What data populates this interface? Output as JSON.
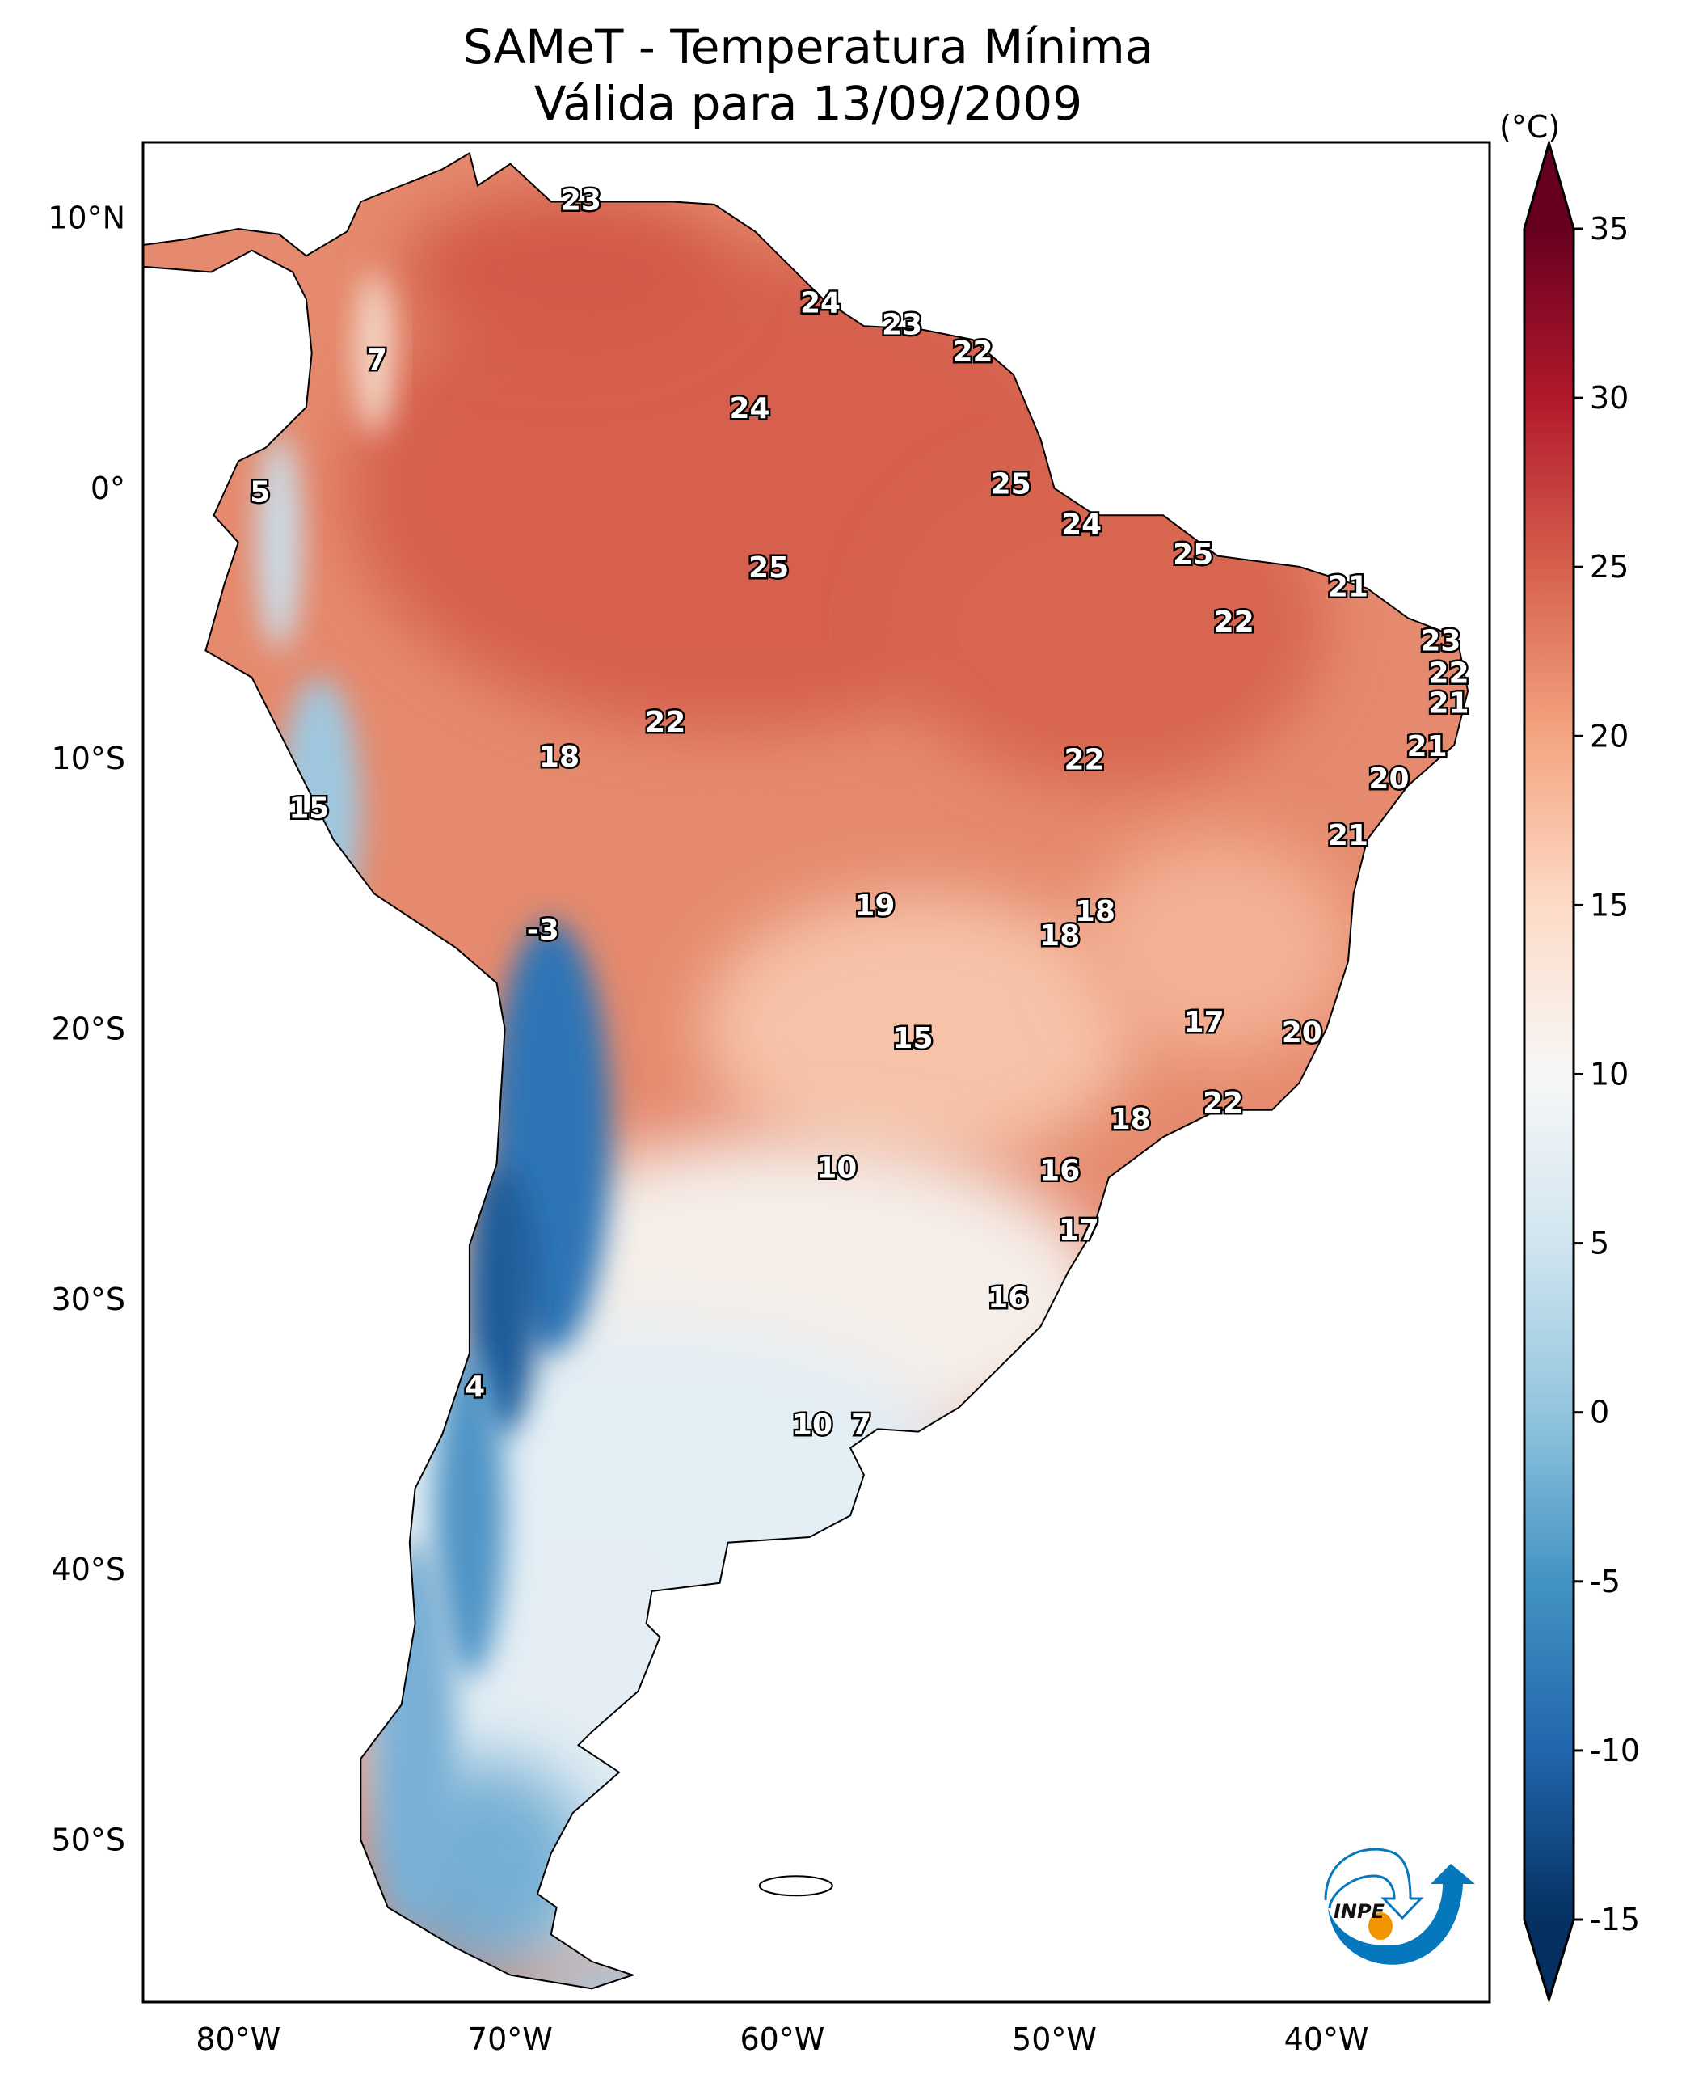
{
  "title": {
    "line1": "SAMeT - Temperatura Mínima",
    "line2": "Válida para 13/09/2009"
  },
  "colorbar": {
    "unit": "(°C)",
    "ticks": [
      "35",
      "30",
      "25",
      "20",
      "15",
      "10",
      "5",
      "0",
      "-5",
      "-10",
      "-15"
    ],
    "tick_values": [
      35,
      30,
      25,
      20,
      15,
      10,
      5,
      0,
      -5,
      -10,
      -15
    ],
    "range": [
      -15,
      35
    ],
    "extend": "both",
    "colormap": "RdBu_r",
    "colors": [
      "#053061",
      "#2166ac",
      "#4393c3",
      "#92c5de",
      "#d1e5f0",
      "#f7f7f7",
      "#fddbc7",
      "#f4a582",
      "#d6604d",
      "#b2182b",
      "#67001f"
    ]
  },
  "axes": {
    "lon_labels": [
      "80°W",
      "70°W",
      "60°W",
      "50°W",
      "40°W"
    ],
    "lon_values": [
      -80,
      -70,
      -60,
      -50,
      -40
    ],
    "lat_labels": [
      "10°N",
      "0°",
      "10°S",
      "20°S",
      "30°S",
      "40°S",
      "50°S"
    ],
    "lat_values": [
      10,
      0,
      -10,
      -20,
      -30,
      -40,
      -50
    ],
    "extent": {
      "lon": [
        -83.5,
        -34
      ],
      "lat": [
        -56,
        12.8
      ]
    }
  },
  "contour_labels": [
    "23",
    "24",
    "23",
    "22",
    "7",
    "24",
    "5",
    "25",
    "24",
    "25",
    "25",
    "21",
    "22",
    "23",
    "22",
    "21",
    "22",
    "21",
    "18",
    "22",
    "20",
    "15",
    "21",
    "19",
    "18",
    "18",
    "-3",
    "15",
    "17",
    "20",
    "22",
    "18",
    "10",
    "16",
    "17",
    "16",
    "4",
    "10",
    "7"
  ],
  "logo": {
    "text": "INPE",
    "blue": "#0477bd",
    "orange": "#f29400"
  }
}
